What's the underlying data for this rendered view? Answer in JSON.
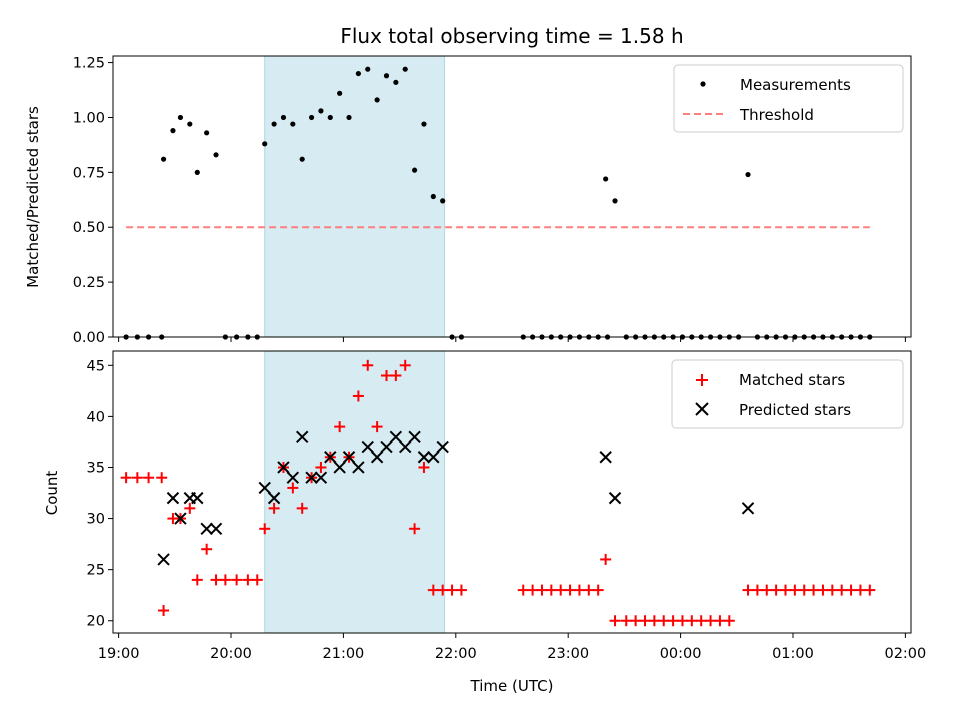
{
  "chart_data": {
    "type": "scatter",
    "title": "Flux total observing time = 1.58 h",
    "xlabel": "Time (UTC)",
    "x_ticks": [
      "19:00",
      "20:00",
      "21:00",
      "22:00",
      "23:00",
      "00:00",
      "01:00",
      "02:00"
    ],
    "x_range": [
      "18:57",
      "02:03"
    ],
    "shaded_span": [
      "20:18",
      "21:54"
    ],
    "colors": {
      "shade": "#add8e6",
      "threshold": "#ff7f7f",
      "matched": "#ff0000",
      "predicted": "#000000",
      "measurement": "#000000"
    },
    "panels": [
      {
        "ylabel": "Matched/Predicted stars",
        "ylim": [
          0,
          1.28
        ],
        "yticks": [
          "0.00",
          "0.25",
          "0.50",
          "0.75",
          "1.00",
          "1.25"
        ],
        "legend": "top-right",
        "series": [
          {
            "name": "Measurements",
            "marker": "dot",
            "points": [
              [
                "19:04",
                0
              ],
              [
                "19:10",
                0
              ],
              [
                "19:16",
                0
              ],
              [
                "19:23",
                0
              ],
              [
                "19:24",
                0.81
              ],
              [
                "19:29",
                0.94
              ],
              [
                "19:33",
                1.0
              ],
              [
                "19:38",
                0.97
              ],
              [
                "19:42",
                0.75
              ],
              [
                "19:47",
                0.93
              ],
              [
                "19:52",
                0.83
              ],
              [
                "19:57",
                0
              ],
              [
                "20:03",
                0
              ],
              [
                "20:09",
                0
              ],
              [
                "20:14",
                0
              ],
              [
                "20:18",
                0.88
              ],
              [
                "20:23",
                0.97
              ],
              [
                "20:28",
                1.0
              ],
              [
                "20:33",
                0.97
              ],
              [
                "20:38",
                0.81
              ],
              [
                "20:43",
                1.0
              ],
              [
                "20:48",
                1.03
              ],
              [
                "20:53",
                1.0
              ],
              [
                "20:58",
                1.11
              ],
              [
                "21:03",
                1.0
              ],
              [
                "21:08",
                1.2
              ],
              [
                "21:13",
                1.22
              ],
              [
                "21:18",
                1.08
              ],
              [
                "21:23",
                1.19
              ],
              [
                "21:28",
                1.16
              ],
              [
                "21:33",
                1.22
              ],
              [
                "21:38",
                0.76
              ],
              [
                "21:43",
                0.97
              ],
              [
                "21:48",
                0.64
              ],
              [
                "21:53",
                0.62
              ],
              [
                "21:58",
                0
              ],
              [
                "22:03",
                0
              ],
              [
                "22:36",
                0
              ],
              [
                "22:41",
                0
              ],
              [
                "22:46",
                0
              ],
              [
                "22:51",
                0
              ],
              [
                "22:56",
                0
              ],
              [
                "23:01",
                0
              ],
              [
                "23:06",
                0
              ],
              [
                "23:11",
                0
              ],
              [
                "23:16",
                0
              ],
              [
                "23:21",
                0
              ],
              [
                "23:20",
                0.72
              ],
              [
                "23:25",
                0.62
              ],
              [
                "23:31",
                0
              ],
              [
                "23:36",
                0
              ],
              [
                "23:41",
                0
              ],
              [
                "23:46",
                0
              ],
              [
                "23:51",
                0
              ],
              [
                "23:56",
                0
              ],
              [
                "00:01",
                0
              ],
              [
                "00:06",
                0
              ],
              [
                "00:11",
                0
              ],
              [
                "00:16",
                0
              ],
              [
                "00:21",
                0
              ],
              [
                "00:26",
                0
              ],
              [
                "00:31",
                0
              ],
              [
                "00:36",
                0.74
              ],
              [
                "00:41",
                0
              ],
              [
                "00:46",
                0
              ],
              [
                "00:51",
                0
              ],
              [
                "00:56",
                0
              ],
              [
                "01:01",
                0
              ],
              [
                "01:06",
                0
              ],
              [
                "01:11",
                0
              ],
              [
                "01:16",
                0
              ],
              [
                "01:21",
                0
              ],
              [
                "01:26",
                0
              ],
              [
                "01:31",
                0
              ],
              [
                "01:36",
                0
              ],
              [
                "01:41",
                0
              ]
            ]
          },
          {
            "name": "Threshold",
            "marker": "dashed-line",
            "points": [
              [
                "19:04",
                0.5
              ],
              [
                "01:41",
                0.5
              ]
            ]
          }
        ]
      },
      {
        "ylabel": "Count",
        "ylim": [
          18.8,
          46.4
        ],
        "yticks": [
          "20",
          "25",
          "30",
          "35",
          "40",
          "45"
        ],
        "legend": "top-right",
        "series": [
          {
            "name": "Matched stars",
            "marker": "plus",
            "points": [
              [
                "19:04",
                34
              ],
              [
                "19:10",
                34
              ],
              [
                "19:16",
                34
              ],
              [
                "19:23",
                34
              ],
              [
                "19:24",
                21
              ],
              [
                "19:29",
                30
              ],
              [
                "19:33",
                30
              ],
              [
                "19:38",
                31
              ],
              [
                "19:42",
                24
              ],
              [
                "19:47",
                27
              ],
              [
                "19:52",
                24
              ],
              [
                "19:57",
                24
              ],
              [
                "20:03",
                24
              ],
              [
                "20:09",
                24
              ],
              [
                "20:14",
                24
              ],
              [
                "20:18",
                29
              ],
              [
                "20:23",
                31
              ],
              [
                "20:28",
                35
              ],
              [
                "20:33",
                33
              ],
              [
                "20:38",
                31
              ],
              [
                "20:43",
                34
              ],
              [
                "20:48",
                35
              ],
              [
                "20:53",
                36
              ],
              [
                "20:58",
                39
              ],
              [
                "21:03",
                36
              ],
              [
                "21:08",
                42
              ],
              [
                "21:13",
                45
              ],
              [
                "21:18",
                39
              ],
              [
                "21:23",
                44
              ],
              [
                "21:28",
                44
              ],
              [
                "21:33",
                45
              ],
              [
                "21:38",
                29
              ],
              [
                "21:43",
                35
              ],
              [
                "21:48",
                23
              ],
              [
                "21:53",
                23
              ],
              [
                "21:58",
                23
              ],
              [
                "22:03",
                23
              ],
              [
                "22:36",
                23
              ],
              [
                "22:41",
                23
              ],
              [
                "22:46",
                23
              ],
              [
                "22:51",
                23
              ],
              [
                "22:56",
                23
              ],
              [
                "23:01",
                23
              ],
              [
                "23:06",
                23
              ],
              [
                "23:11",
                23
              ],
              [
                "23:16",
                23
              ],
              [
                "23:20",
                26
              ],
              [
                "23:25",
                20
              ],
              [
                "23:31",
                20
              ],
              [
                "23:36",
                20
              ],
              [
                "23:41",
                20
              ],
              [
                "23:46",
                20
              ],
              [
                "23:51",
                20
              ],
              [
                "23:56",
                20
              ],
              [
                "00:01",
                20
              ],
              [
                "00:06",
                20
              ],
              [
                "00:11",
                20
              ],
              [
                "00:16",
                20
              ],
              [
                "00:21",
                20
              ],
              [
                "00:26",
                20
              ],
              [
                "00:36",
                23
              ],
              [
                "00:41",
                23
              ],
              [
                "00:46",
                23
              ],
              [
                "00:51",
                23
              ],
              [
                "00:56",
                23
              ],
              [
                "01:01",
                23
              ],
              [
                "01:06",
                23
              ],
              [
                "01:11",
                23
              ],
              [
                "01:16",
                23
              ],
              [
                "01:21",
                23
              ],
              [
                "01:26",
                23
              ],
              [
                "01:31",
                23
              ],
              [
                "01:36",
                23
              ],
              [
                "01:41",
                23
              ]
            ]
          },
          {
            "name": "Predicted stars",
            "marker": "x",
            "points": [
              [
                "19:24",
                26
              ],
              [
                "19:29",
                32
              ],
              [
                "19:33",
                30
              ],
              [
                "19:38",
                32
              ],
              [
                "19:42",
                32
              ],
              [
                "19:47",
                29
              ],
              [
                "19:52",
                29
              ],
              [
                "20:18",
                33
              ],
              [
                "20:23",
                32
              ],
              [
                "20:28",
                35
              ],
              [
                "20:33",
                34
              ],
              [
                "20:38",
                38
              ],
              [
                "20:43",
                34
              ],
              [
                "20:48",
                34
              ],
              [
                "20:53",
                36
              ],
              [
                "20:58",
                35
              ],
              [
                "21:03",
                36
              ],
              [
                "21:08",
                35
              ],
              [
                "21:13",
                37
              ],
              [
                "21:18",
                36
              ],
              [
                "21:23",
                37
              ],
              [
                "21:28",
                38
              ],
              [
                "21:33",
                37
              ],
              [
                "21:38",
                38
              ],
              [
                "21:43",
                36
              ],
              [
                "21:48",
                36
              ],
              [
                "21:53",
                37
              ],
              [
                "23:20",
                36
              ],
              [
                "23:25",
                32
              ],
              [
                "00:36",
                31
              ]
            ]
          }
        ]
      }
    ]
  }
}
